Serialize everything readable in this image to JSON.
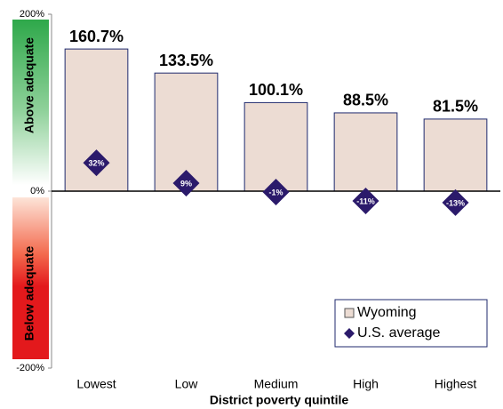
{
  "chart_data": {
    "type": "bar",
    "annotations": [
      "Above adequate",
      "Below adequate"
    ],
    "x_label": "District poverty quintile",
    "categories": [
      "Lowest",
      "Low",
      "Medium",
      "High",
      "Highest"
    ],
    "series": [
      {
        "name": "Wyoming",
        "color": "#ecdcd3",
        "values": [
          160.7,
          133.5,
          100.1,
          88.5,
          81.5
        ],
        "value_labels": [
          "160.7%",
          "133.5%",
          "100.1%",
          "88.5%",
          "81.5%"
        ]
      },
      {
        "name": "U.S. average",
        "color": "#2b1a6b",
        "marker": "diamond",
        "values": [
          32,
          9,
          -1,
          -11,
          -13
        ],
        "value_labels": [
          "32%",
          "9%",
          "-1%",
          "-11%",
          "-13%"
        ]
      }
    ],
    "ylim": [
      -200,
      200
    ],
    "yticks": [
      {
        "value": -200,
        "label": "-200%"
      },
      {
        "value": 0,
        "label": "0%"
      },
      {
        "value": 200,
        "label": "200%"
      }
    ],
    "legend": "lower right"
  }
}
